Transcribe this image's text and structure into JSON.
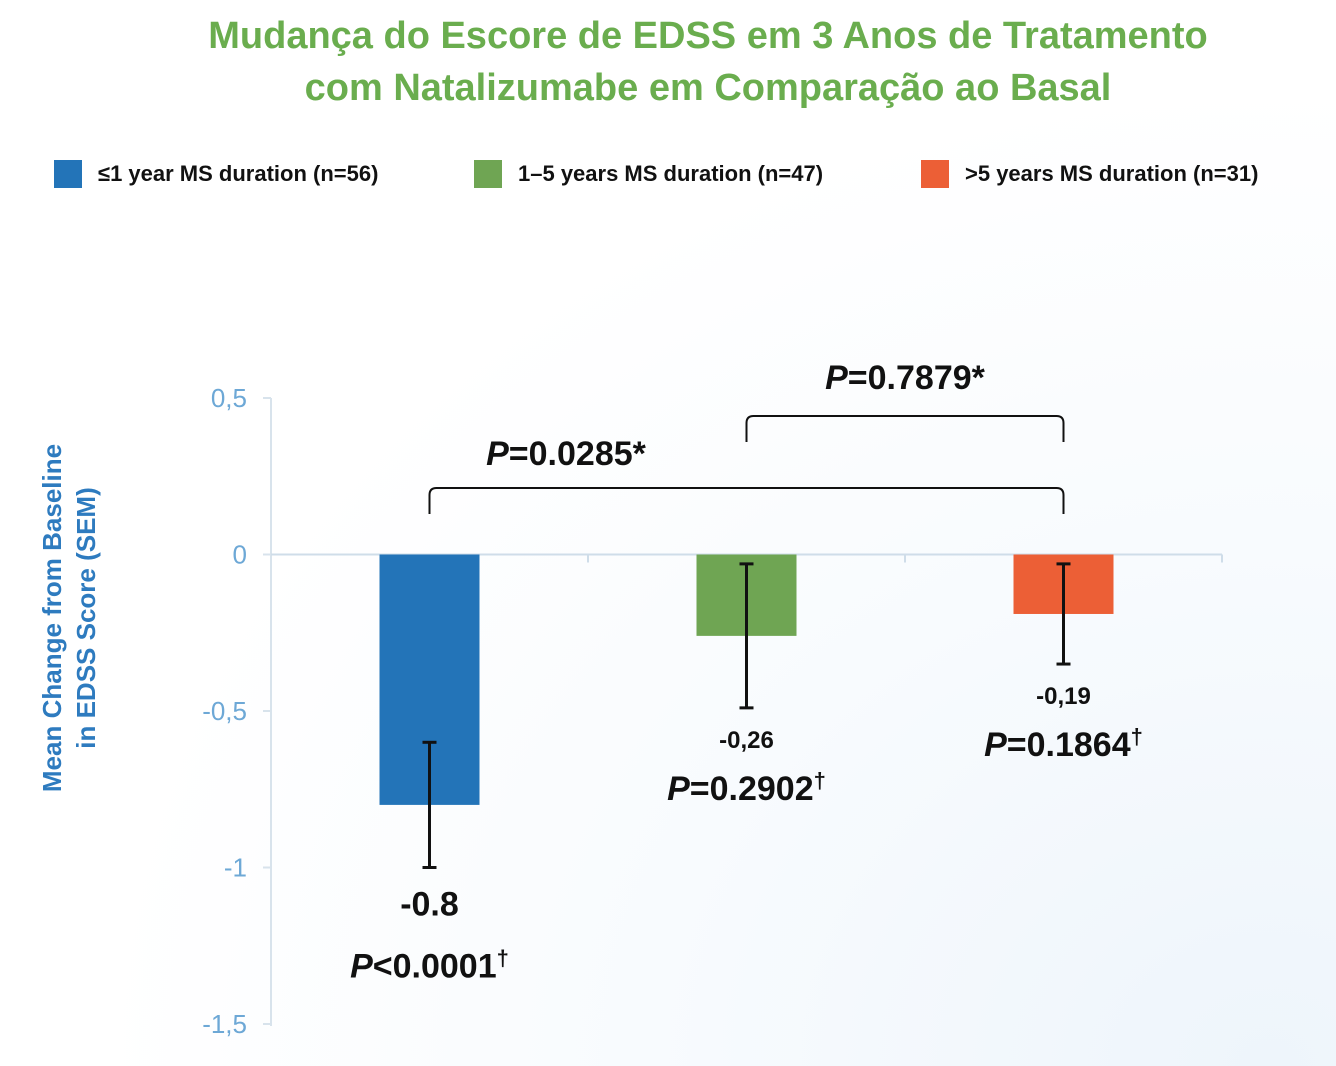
{
  "title_line1": "Mudança do Escore de EDSS em 3 Anos de Tratamento",
  "title_line2": "com Natalizumabe em Comparação ao Basal",
  "ylabel_line1": "Mean Change from Baseline",
  "ylabel_line2": "in EDSS Score (SEM)",
  "colors": {
    "title": "#6aad4e",
    "axis_text": "#6da8d6",
    "ylabel": "#2e7bbf"
  },
  "chart_data": {
    "type": "bar",
    "categories": [
      "≤1 year MS duration (n=56)",
      "1–5 years MS duration (n=47)",
      ">5 years MS duration (n=31)"
    ],
    "series": [
      {
        "name": "≤1 year MS duration (n=56)",
        "value": -0.8,
        "error_low": -1.0,
        "error_high": -0.6,
        "color": "#2374b8",
        "label": "-0.8",
        "p_prefix": "P",
        "p_text": "<0.0001",
        "p_sup": "†"
      },
      {
        "name": "1–5 years MS duration (n=47)",
        "value": -0.26,
        "error_low": -0.49,
        "error_high": -0.03,
        "color": "#6fa553",
        "label": "-0,26",
        "p_prefix": "P",
        "p_text": "=0.2902",
        "p_sup": "†"
      },
      {
        "name": ">5 years MS duration (n=31)",
        "value": -0.19,
        "error_low": -0.35,
        "error_high": -0.03,
        "color": "#ec5f36",
        "label": "-0,19",
        "p_prefix": "P",
        "p_text": "=0.1864",
        "p_sup": "†"
      }
    ],
    "yticks": [
      0.5,
      0,
      -0.5,
      -1,
      -1.5
    ],
    "ytick_labels": [
      "0,5",
      "0",
      "-0,5",
      "-1",
      "-1,5"
    ],
    "ylim": [
      -1.5,
      0.5
    ],
    "comparisons": [
      {
        "from": 0,
        "to": 2,
        "p_prefix": "P",
        "p_text": "=0.0285*"
      },
      {
        "from": 1,
        "to": 2,
        "p_prefix": "P",
        "p_text": "=0.7879*"
      }
    ]
  }
}
